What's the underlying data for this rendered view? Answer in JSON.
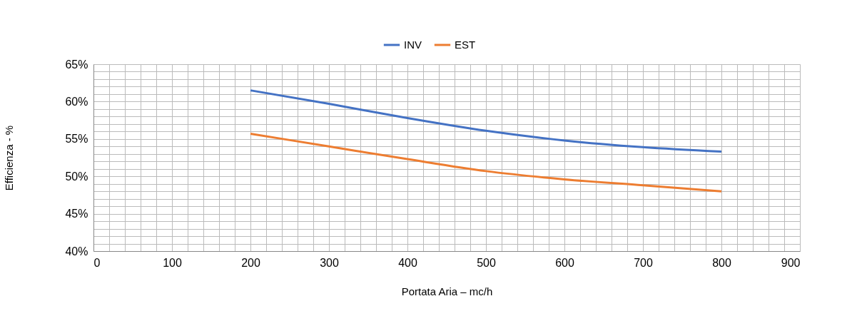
{
  "chart_data": {
    "type": "line",
    "xlabel": "Portata Aria – mc/h",
    "ylabel": "Efficienza - %",
    "x": [
      200,
      300,
      400,
      500,
      600,
      700,
      800
    ],
    "series": [
      {
        "name": "INV",
        "color": "#4472c4",
        "values": [
          61.5,
          59.7,
          57.8,
          56.1,
          54.8,
          53.9,
          53.3
        ]
      },
      {
        "name": "EST",
        "color": "#ed7d31",
        "values": [
          55.7,
          54.0,
          52.3,
          50.7,
          49.6,
          48.8,
          48.0
        ]
      }
    ],
    "xlim": [
      0,
      900
    ],
    "xticks": [
      0,
      {
        "value": 20,
        "label": null
      },
      {
        "value": 40,
        "label": null
      },
      {
        "value": 60,
        "label": null
      },
      {
        "value": 80,
        "label": null
      },
      100,
      {
        "value": 120,
        "label": null
      },
      {
        "value": 140,
        "label": null
      },
      {
        "value": 160,
        "label": null
      },
      {
        "value": 180,
        "label": null
      },
      200,
      {
        "value": 220,
        "label": null
      },
      {
        "value": 240,
        "label": null
      },
      {
        "value": 260,
        "label": null
      },
      {
        "value": 280,
        "label": null
      },
      300,
      {
        "value": 320,
        "label": null
      },
      {
        "value": 340,
        "label": null
      },
      {
        "value": 360,
        "label": null
      },
      {
        "value": 380,
        "label": null
      },
      400,
      {
        "value": 420,
        "label": null
      },
      {
        "value": 440,
        "label": null
      },
      {
        "value": 460,
        "label": null
      },
      {
        "value": 480,
        "label": null
      },
      500,
      {
        "value": 520,
        "label": null
      },
      {
        "value": 540,
        "label": null
      },
      {
        "value": 560,
        "label": null
      },
      {
        "value": 580,
        "label": null
      },
      600,
      {
        "value": 620,
        "label": null
      },
      {
        "value": 640,
        "label": null
      },
      {
        "value": 660,
        "label": null
      },
      {
        "value": 680,
        "label": null
      },
      700,
      {
        "value": 720,
        "label": null
      },
      {
        "value": 740,
        "label": null
      },
      {
        "value": 760,
        "label": null
      },
      {
        "value": 780,
        "label": null
      },
      800,
      {
        "value": 820,
        "label": null
      },
      {
        "value": 840,
        "label": null
      },
      {
        "value": 860,
        "label": null
      },
      {
        "value": 880,
        "label": null
      },
      900
    ],
    "ylim": [
      40,
      65
    ],
    "yticks": [
      {
        "value": 40,
        "label": "40%"
      },
      {
        "value": 41,
        "label": null
      },
      {
        "value": 42,
        "label": null
      },
      {
        "value": 43,
        "label": null
      },
      {
        "value": 44,
        "label": null
      },
      {
        "value": 45,
        "label": "45%"
      },
      {
        "value": 46,
        "label": null
      },
      {
        "value": 47,
        "label": null
      },
      {
        "value": 48,
        "label": null
      },
      {
        "value": 49,
        "label": null
      },
      {
        "value": 50,
        "label": "50%"
      },
      {
        "value": 51,
        "label": null
      },
      {
        "value": 52,
        "label": null
      },
      {
        "value": 53,
        "label": null
      },
      {
        "value": 54,
        "label": null
      },
      {
        "value": 55,
        "label": "55%"
      },
      {
        "value": 56,
        "label": null
      },
      {
        "value": 57,
        "label": null
      },
      {
        "value": 58,
        "label": null
      },
      {
        "value": 59,
        "label": null
      },
      {
        "value": 60,
        "label": "60%"
      },
      {
        "value": 61,
        "label": null
      },
      {
        "value": 62,
        "label": null
      },
      {
        "value": 63,
        "label": null
      },
      {
        "value": 64,
        "label": null
      },
      {
        "value": 65,
        "label": "65%"
      }
    ],
    "grid": true,
    "legend": "top",
    "marker": "none",
    "line_style": "solid"
  }
}
